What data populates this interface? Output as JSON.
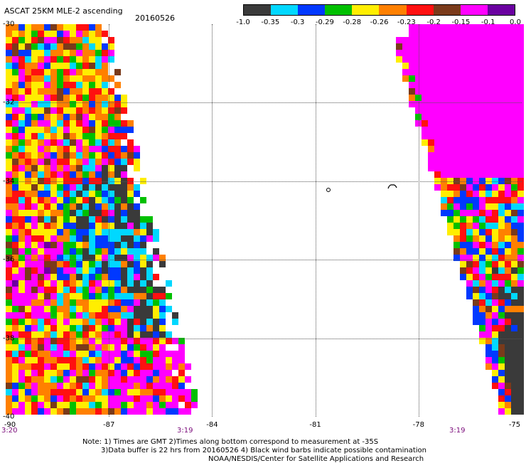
{
  "header": {
    "title": "ASCAT 25KM MLE-2 ascending",
    "date": "20160526"
  },
  "colorbar": {
    "colors": [
      "#3a3a3a",
      "#00d8ff",
      "#0038ff",
      "#00c000",
      "#ffee00",
      "#ff8000",
      "#ff1010",
      "#7a3a1a",
      "#ff00ff",
      "#6a00a0"
    ],
    "labels": [
      "-1.0",
      "-0.35",
      "-0.3",
      "-0.29",
      "-0.28",
      "-0.26",
      "-0.23",
      "-0.2",
      "-0.15",
      "-0.1",
      "0.0"
    ]
  },
  "axes": {
    "lat_labels": [
      "-30",
      "-32",
      "-34",
      "-36",
      "-38",
      "-40"
    ],
    "lon_labels": [
      "-90",
      "-87",
      "-84",
      "-81",
      "-78",
      "-75"
    ],
    "lon_range": [
      -90,
      -75
    ],
    "lat_range": [
      -30,
      -40
    ]
  },
  "time_labels": [
    "3:20",
    "3:19",
    "3:19"
  ],
  "notes": {
    "line1": "Note: 1) Times are GMT 2)Times along bottom correspond to measurement at -35S",
    "line2": "3)Data buffer is 22 hrs from 20160526 4) Black wind barbs indicate possible contamination",
    "credit": "NOAA/NESDIS/Center for Satellite Applications and Research"
  }
}
